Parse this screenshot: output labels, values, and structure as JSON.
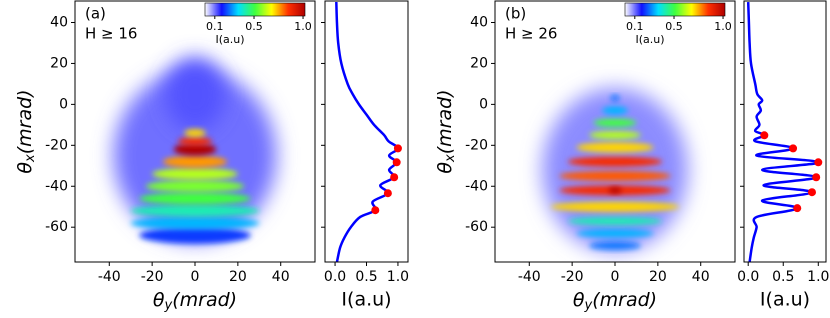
{
  "chart_data": [
    {
      "type": "heatmap",
      "panel": "(a)",
      "annotation": "H ≥ 16",
      "xlabel": {
        "symbol": "θ",
        "subscript": "y",
        "unit": "(mrad)"
      },
      "ylabel": {
        "symbol": "θ",
        "subscript": "x",
        "unit": "(mrad)"
      },
      "xlim": [
        -56,
        56
      ],
      "ylim": [
        -77,
        50.5
      ],
      "xticks": [
        -40,
        -20,
        0,
        20,
        40
      ],
      "yticks": [
        40,
        20,
        0,
        -20,
        -40,
        -60
      ],
      "colormap": [
        "#ffffff",
        "#1010ff",
        "#00e0ff",
        "#40ff40",
        "#ffff00",
        "#ff3000",
        "#b00000"
      ],
      "colorbar": {
        "label": "I(a.u)",
        "lim": [
          0,
          1.02
        ],
        "ticks": [
          0.1,
          0.5,
          {
            "value": 1,
            "label": "1.0"
          }
        ]
      },
      "fringes": [
        {
          "theta_x": -25,
          "half_width": 38,
          "half_height": 42,
          "intensity": 0.1
        },
        {
          "theta_x": 5,
          "half_width": 14,
          "half_height": 18,
          "intensity": 0.12
        },
        {
          "theta_x": -64,
          "half_width": 26,
          "half_height": 4,
          "intensity": 0.2
        },
        {
          "theta_x": -58,
          "half_width": 30,
          "half_height": 3,
          "intensity": 0.3
        },
        {
          "theta_x": -52,
          "half_width": 30,
          "half_height": 3,
          "intensity": 0.4
        },
        {
          "theta_x": -46,
          "half_width": 26,
          "half_height": 3,
          "intensity": 0.5
        },
        {
          "theta_x": -40,
          "half_width": 23,
          "half_height": 3,
          "intensity": 0.55
        },
        {
          "theta_x": -34,
          "half_width": 20,
          "half_height": 3,
          "intensity": 0.6
        },
        {
          "theta_x": -28,
          "half_width": 15,
          "half_height": 3,
          "intensity": 0.75
        },
        {
          "theta_x": -22,
          "half_width": 10,
          "half_height": 3,
          "intensity": 1.0
        },
        {
          "theta_x": -18,
          "half_width": 8,
          "half_height": 2,
          "intensity": 0.85
        },
        {
          "theta_x": -14,
          "half_width": 5,
          "half_height": 2,
          "intensity": 0.7
        }
      ]
    },
    {
      "type": "line",
      "xlabel": "I(a.u)",
      "xlim": [
        -0.16,
        1.16
      ],
      "ylim": [
        -77,
        50.5
      ],
      "xticks": [
        {
          "value": 0,
          "label": "0.0"
        },
        0.5,
        {
          "value": 1,
          "label": "1.0"
        }
      ],
      "yticks": [
        40,
        20,
        0,
        -20,
        -40,
        -60
      ],
      "curve": {
        "color": "#0000ff",
        "theta": [
          50,
          40,
          30,
          20,
          10,
          5,
          0,
          -5,
          -10,
          -15,
          -18,
          -21.5,
          -25,
          -28.3,
          -32,
          -35.6,
          -39.5,
          -43.4,
          -47.5,
          -51.7,
          -55,
          -60,
          -65,
          -70,
          -77
        ],
        "intensity": [
          0.02,
          0.03,
          0.05,
          0.1,
          0.2,
          0.28,
          0.38,
          0.5,
          0.62,
          0.78,
          0.85,
          1.0,
          0.86,
          0.98,
          0.86,
          0.94,
          0.72,
          0.84,
          0.6,
          0.64,
          0.4,
          0.25,
          0.15,
          0.08,
          0.03
        ]
      },
      "peaks": {
        "color": "#ff0000",
        "theta": [
          -21.5,
          -28.3,
          -35.6,
          -43.4,
          -51.7
        ],
        "intensity": [
          1.0,
          0.98,
          0.94,
          0.84,
          0.64
        ]
      }
    },
    {
      "type": "heatmap",
      "panel": "(b)",
      "annotation": "H ≥ 26",
      "xlabel": {
        "symbol": "θ",
        "subscript": "y",
        "unit": "(mrad)"
      },
      "ylabel": {
        "symbol": "θ",
        "subscript": "x",
        "unit": "(mrad)"
      },
      "xlim": [
        -56,
        56
      ],
      "ylim": [
        -77,
        50.5
      ],
      "xticks": [
        -40,
        -20,
        0,
        20,
        40
      ],
      "yticks": [
        40,
        20,
        0,
        -20,
        -40,
        -60
      ],
      "colormap": [
        "#ffffff",
        "#1010ff",
        "#00e0ff",
        "#40ff40",
        "#ffff00",
        "#ff3000",
        "#b00000"
      ],
      "colorbar": {
        "label": "I(a.u)",
        "lim": [
          0,
          1.02
        ],
        "ticks": [
          0.1,
          0.5,
          {
            "value": 1,
            "label": "1.0"
          }
        ]
      },
      "fringes": [
        {
          "theta_x": -32,
          "half_width": 34,
          "half_height": 40,
          "intensity": 0.08
        },
        {
          "theta_x": -69,
          "half_width": 12,
          "half_height": 2,
          "intensity": 0.25
        },
        {
          "theta_x": -63,
          "half_width": 18,
          "half_height": 2,
          "intensity": 0.3
        },
        {
          "theta_x": -57,
          "half_width": 22,
          "half_height": 2,
          "intensity": 0.4
        },
        {
          "theta_x": -50,
          "half_width": 30,
          "half_height": 2.5,
          "intensity": 0.7
        },
        {
          "theta_x": -42,
          "half_width": 26,
          "half_height": 2.5,
          "intensity": 0.85
        },
        {
          "theta_x": -35,
          "half_width": 26,
          "half_height": 2.5,
          "intensity": 0.8
        },
        {
          "theta_x": -28,
          "half_width": 22,
          "half_height": 2.5,
          "intensity": 0.85
        },
        {
          "theta_x": -21,
          "half_width": 18,
          "half_height": 2.5,
          "intensity": 0.7
        },
        {
          "theta_x": -15,
          "half_width": 12,
          "half_height": 2,
          "intensity": 0.6
        },
        {
          "theta_x": -9,
          "half_width": 10,
          "half_height": 2,
          "intensity": 0.5
        },
        {
          "theta_x": -3,
          "half_width": 6,
          "half_height": 2,
          "intensity": 0.3
        },
        {
          "theta_x": 3,
          "half_width": 2,
          "half_height": 1.5,
          "intensity": 0.25
        },
        {
          "theta_x": -42,
          "half_width": 3,
          "half_height": 1.5,
          "intensity": 1.0
        }
      ]
    },
    {
      "type": "line",
      "xlabel": "I(a.u)",
      "xlim": [
        -0.06,
        1.11
      ],
      "ylim": [
        -77,
        50.5
      ],
      "xticks": [
        {
          "value": 0,
          "label": "0.0"
        },
        0.5,
        {
          "value": 1,
          "label": "1.0"
        }
      ],
      "yticks": [
        40,
        20,
        0,
        -20,
        -40,
        -60
      ],
      "curve": {
        "color": "#0000ff",
        "theta": [
          50,
          40,
          30,
          20,
          10,
          5,
          2,
          0,
          -3,
          -6,
          -10,
          -13,
          -15.1,
          -18,
          -21.5,
          -25,
          -28.3,
          -32,
          -35.6,
          -39.5,
          -42.9,
          -47,
          -50.7,
          -55,
          -60,
          -65,
          -70,
          -77
        ],
        "intensity": [
          0.0,
          0.01,
          0.02,
          0.04,
          0.1,
          0.13,
          0.2,
          0.15,
          0.18,
          0.12,
          0.16,
          0.1,
          0.23,
          0.1,
          0.64,
          0.12,
          1.0,
          0.2,
          0.97,
          0.22,
          0.91,
          0.2,
          0.7,
          0.12,
          0.12,
          0.08,
          0.05,
          0.02
        ]
      },
      "peaks": {
        "color": "#ff0000",
        "theta": [
          -15.1,
          -21.5,
          -28.3,
          -35.6,
          -42.9,
          -50.7
        ],
        "intensity": [
          0.23,
          0.64,
          1.0,
          0.97,
          0.91,
          0.7
        ]
      }
    }
  ]
}
